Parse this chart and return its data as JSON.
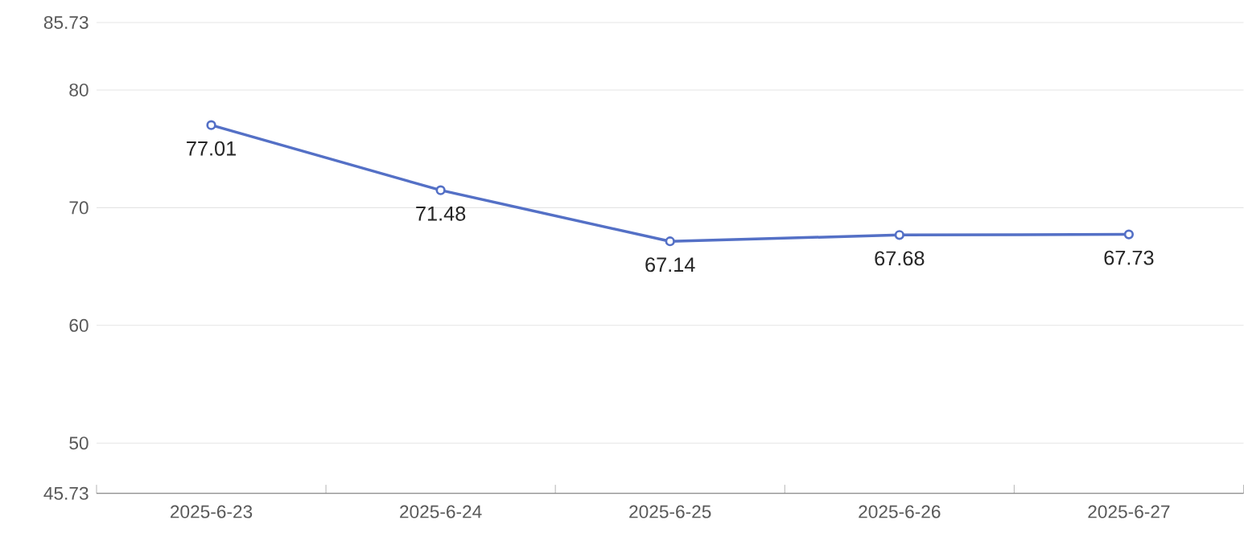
{
  "chart_data": {
    "type": "line",
    "categories": [
      "2025-6-23",
      "2025-6-24",
      "2025-6-25",
      "2025-6-26",
      "2025-6-27"
    ],
    "series": [
      {
        "color": "#5470c6",
        "values": [
          77.01,
          71.48,
          67.14,
          67.68,
          67.73
        ]
      }
    ],
    "ylim": [
      45.73,
      85.73
    ],
    "yticks": [
      45.73,
      50,
      60,
      70,
      80,
      85.73
    ],
    "grid": "y",
    "marker": "circle",
    "line_style": "solid",
    "data_labels": true
  }
}
